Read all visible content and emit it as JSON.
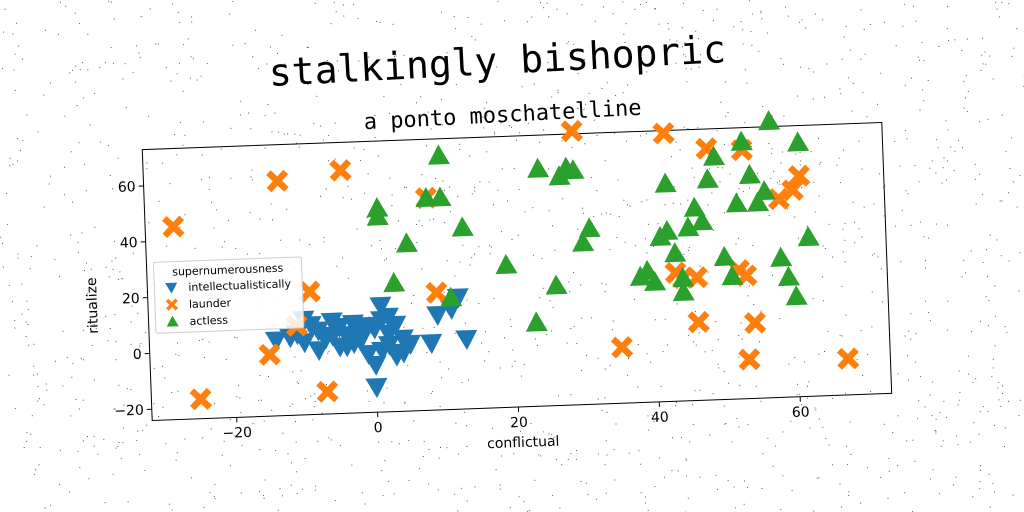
{
  "chart_data": {
    "type": "scatter",
    "title": "stalkingly bishopric",
    "subtitle": "a ponto moschatelline",
    "xlabel": "conflictual",
    "ylabel": "ritualize",
    "xlim": [
      -32,
      73
    ],
    "ylim": [
      -24,
      73
    ],
    "xticks": [
      -20,
      0,
      20,
      40,
      60
    ],
    "yticks": [
      -20,
      0,
      20,
      40,
      60
    ],
    "xtick_labels": [
      "−20",
      "0",
      "20",
      "40",
      "60"
    ],
    "ytick_labels": [
      "−20",
      "0",
      "20",
      "40",
      "60"
    ],
    "grid": false,
    "legend": {
      "title": "supernumerousness",
      "placement": "center-left"
    },
    "series": [
      {
        "name": "intellectualistically",
        "marker": "triangle-down",
        "color": "#1f77b4",
        "points": [
          [
            -14,
            3
          ],
          [
            -11,
            5
          ],
          [
            -10,
            2
          ],
          [
            -9,
            8
          ],
          [
            -8,
            6
          ],
          [
            -7,
            3
          ],
          [
            -6,
            9
          ],
          [
            -5,
            7
          ],
          [
            -4,
            4
          ],
          [
            -3,
            8
          ],
          [
            -2,
            5
          ],
          [
            -1,
            7
          ],
          [
            0,
            6
          ],
          [
            1,
            9
          ],
          [
            2,
            4
          ],
          [
            3,
            7
          ],
          [
            4,
            2
          ],
          [
            -8,
            -1
          ],
          [
            -5,
            0
          ],
          [
            -3,
            1
          ],
          [
            -1,
            -3
          ],
          [
            0,
            -7
          ],
          [
            1,
            -2
          ],
          [
            2,
            0
          ],
          [
            3,
            -4
          ],
          [
            5,
            0
          ],
          [
            8,
            0
          ],
          [
            0,
            -15
          ],
          [
            1,
            14
          ],
          [
            2,
            10
          ],
          [
            -4,
            0
          ],
          [
            -6,
            4
          ],
          [
            9,
            10
          ],
          [
            11,
            12
          ],
          [
            12,
            16
          ],
          [
            13,
            1
          ],
          [
            -10,
            10
          ],
          [
            -2,
            2
          ],
          [
            -12,
            4
          ],
          [
            4,
            -3
          ]
        ]
      },
      {
        "name": "launder",
        "marker": "x",
        "color": "#ff7f0e",
        "points": [
          [
            -28,
            45
          ],
          [
            -13,
            60
          ],
          [
            -4,
            63
          ],
          [
            8,
            52
          ],
          [
            9,
            18
          ],
          [
            -9,
            20
          ],
          [
            -11,
            8
          ],
          [
            -15,
            -2
          ],
          [
            -25,
            -17
          ],
          [
            -7,
            -16
          ],
          [
            29,
            74
          ],
          [
            42,
            72
          ],
          [
            48,
            66
          ],
          [
            53,
            65
          ],
          [
            60,
            50
          ],
          [
            61,
            55
          ],
          [
            58,
            47
          ],
          [
            35,
            -4
          ],
          [
            43,
            22
          ],
          [
            44,
            20
          ],
          [
            46,
            20
          ],
          [
            52,
            22
          ],
          [
            53,
            20
          ],
          [
            54,
            3
          ],
          [
            46,
            4
          ],
          [
            53,
            -10
          ],
          [
            67,
            -11
          ]
        ]
      },
      {
        "name": "actless",
        "marker": "triangle-up",
        "color": "#2ca02c",
        "points": [
          [
            10,
            67
          ],
          [
            8,
            52
          ],
          [
            10,
            52
          ],
          [
            1,
            49
          ],
          [
            1,
            46
          ],
          [
            5,
            36
          ],
          [
            13,
            41
          ],
          [
            3,
            22
          ],
          [
            11,
            16
          ],
          [
            19,
            27
          ],
          [
            23,
            6
          ],
          [
            24,
            61
          ],
          [
            26,
            19
          ],
          [
            27,
            58
          ],
          [
            28,
            61
          ],
          [
            29,
            60
          ],
          [
            30,
            34
          ],
          [
            31,
            39
          ],
          [
            39,
            23
          ],
          [
            40,
            19
          ],
          [
            41,
            35
          ],
          [
            42,
            37
          ],
          [
            43,
            29
          ],
          [
            44,
            20
          ],
          [
            45,
            38
          ],
          [
            46,
            45
          ],
          [
            47,
            40
          ],
          [
            48,
            55
          ],
          [
            49,
            63
          ],
          [
            50,
            27
          ],
          [
            51,
            20
          ],
          [
            52,
            46
          ],
          [
            53,
            68
          ],
          [
            54,
            56
          ],
          [
            55,
            46
          ],
          [
            56,
            50
          ],
          [
            57,
            75
          ],
          [
            58,
            26
          ],
          [
            59,
            19
          ],
          [
            60,
            12
          ],
          [
            61,
            67
          ],
          [
            62,
            33
          ],
          [
            44,
            15
          ],
          [
            42,
            54
          ],
          [
            38,
            21
          ]
        ]
      }
    ]
  }
}
